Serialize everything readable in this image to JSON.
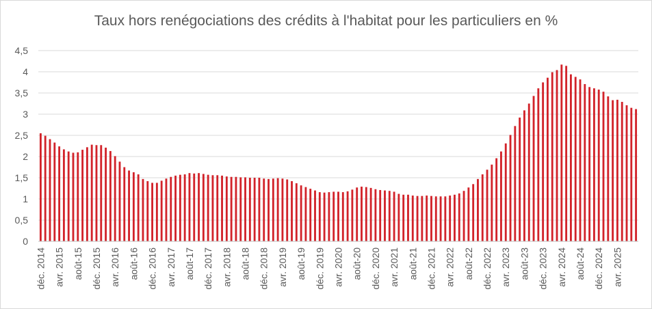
{
  "chart_data": {
    "type": "bar",
    "title": "Taux hors renégociations des crédits à l'habitat pour les particuliers en %",
    "xlabel": "",
    "ylabel": "",
    "ylim": [
      0,
      4.5
    ],
    "yticks": [
      "0",
      "0,5",
      "1",
      "1,5",
      "2",
      "2,5",
      "3",
      "3,5",
      "4",
      "4,5"
    ],
    "grid": true,
    "legend": "none",
    "bar_color": "#d2232a",
    "x_tick_labels": [
      {
        "index": 0,
        "label": "déc. 2014"
      },
      {
        "index": 4,
        "label": "avr. 2015"
      },
      {
        "index": 8,
        "label": "août-15"
      },
      {
        "index": 12,
        "label": "déc. 2015"
      },
      {
        "index": 16,
        "label": "avr. 2016"
      },
      {
        "index": 20,
        "label": "août-16"
      },
      {
        "index": 24,
        "label": "déc. 2016"
      },
      {
        "index": 28,
        "label": "avr. 2017"
      },
      {
        "index": 32,
        "label": "août-17"
      },
      {
        "index": 36,
        "label": "déc. 2017"
      },
      {
        "index": 40,
        "label": "avr. 2018"
      },
      {
        "index": 44,
        "label": "août-18"
      },
      {
        "index": 48,
        "label": "déc. 2018"
      },
      {
        "index": 52,
        "label": "avr. 2019"
      },
      {
        "index": 56,
        "label": "août-19"
      },
      {
        "index": 60,
        "label": "déc. 2019"
      },
      {
        "index": 64,
        "label": "avr. 2020"
      },
      {
        "index": 68,
        "label": "août-20"
      },
      {
        "index": 72,
        "label": "déc. 2020"
      },
      {
        "index": 76,
        "label": "avr. 2021"
      },
      {
        "index": 80,
        "label": "août-21"
      },
      {
        "index": 84,
        "label": "déc. 2021"
      },
      {
        "index": 88,
        "label": "avr. 2022"
      },
      {
        "index": 92,
        "label": "août-22"
      },
      {
        "index": 96,
        "label": "déc. 2022"
      },
      {
        "index": 100,
        "label": "avr. 2023"
      },
      {
        "index": 104,
        "label": "août-23"
      },
      {
        "index": 108,
        "label": "déc. 2023"
      },
      {
        "index": 112,
        "label": "avr. 2024"
      },
      {
        "index": 116,
        "label": "août-24"
      },
      {
        "index": 120,
        "label": "déc. 2024"
      },
      {
        "index": 124,
        "label": "avr. 2025"
      }
    ],
    "values": [
      2.55,
      2.49,
      2.41,
      2.33,
      2.24,
      2.17,
      2.12,
      2.09,
      2.1,
      2.16,
      2.22,
      2.28,
      2.27,
      2.27,
      2.21,
      2.13,
      2.01,
      1.88,
      1.75,
      1.67,
      1.63,
      1.58,
      1.47,
      1.42,
      1.38,
      1.38,
      1.43,
      1.48,
      1.52,
      1.55,
      1.57,
      1.58,
      1.61,
      1.6,
      1.61,
      1.59,
      1.57,
      1.56,
      1.56,
      1.55,
      1.53,
      1.52,
      1.52,
      1.51,
      1.51,
      1.5,
      1.5,
      1.5,
      1.48,
      1.47,
      1.48,
      1.49,
      1.48,
      1.46,
      1.42,
      1.37,
      1.32,
      1.28,
      1.24,
      1.2,
      1.16,
      1.15,
      1.16,
      1.17,
      1.17,
      1.16,
      1.18,
      1.22,
      1.27,
      1.29,
      1.28,
      1.26,
      1.23,
      1.21,
      1.2,
      1.19,
      1.17,
      1.12,
      1.1,
      1.1,
      1.08,
      1.07,
      1.07,
      1.08,
      1.07,
      1.06,
      1.06,
      1.06,
      1.08,
      1.1,
      1.13,
      1.19,
      1.27,
      1.35,
      1.47,
      1.58,
      1.69,
      1.81,
      1.96,
      2.12,
      2.31,
      2.51,
      2.72,
      2.92,
      3.09,
      3.25,
      3.43,
      3.61,
      3.75,
      3.86,
      3.99,
      4.04,
      4.17,
      4.14,
      3.94,
      3.88,
      3.82,
      3.71,
      3.64,
      3.61,
      3.58,
      3.53,
      3.42,
      3.33,
      3.34,
      3.29,
      3.21,
      3.15,
      3.12
    ]
  }
}
